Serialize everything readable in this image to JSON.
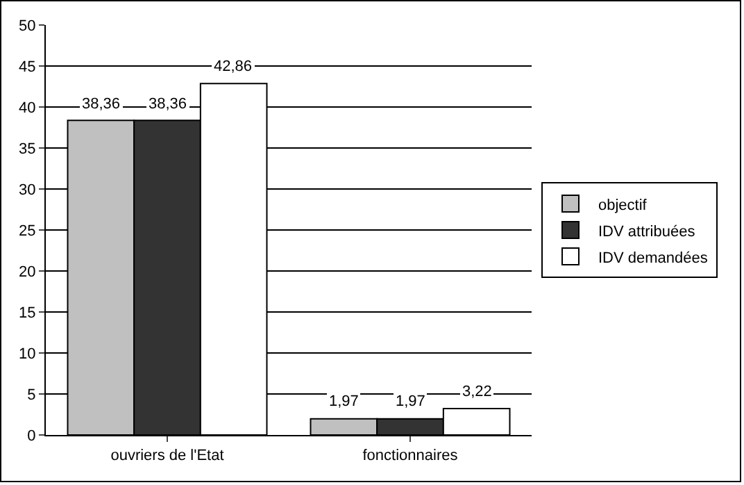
{
  "chart_data": {
    "type": "bar",
    "categories": [
      "ouvriers de l'Etat",
      "fonctionnaires"
    ],
    "series": [
      {
        "name": "objectif",
        "color": "#c0c0c0",
        "values": [
          38.36,
          1.97
        ],
        "value_labels": [
          "38,36",
          "1,97"
        ]
      },
      {
        "name": "IDV attribuées",
        "color": "#333333",
        "values": [
          38.36,
          1.97
        ],
        "value_labels": [
          "38,36",
          "1,97"
        ]
      },
      {
        "name": "IDV demandées",
        "color": "#ffffff",
        "values": [
          42.86,
          3.22
        ],
        "value_labels": [
          "42,86",
          "3,22"
        ]
      }
    ],
    "ylim": [
      0,
      50
    ],
    "yticks": [
      0,
      5,
      10,
      15,
      20,
      25,
      30,
      35,
      40,
      45,
      50
    ],
    "grid": "y",
    "legend": "right"
  }
}
